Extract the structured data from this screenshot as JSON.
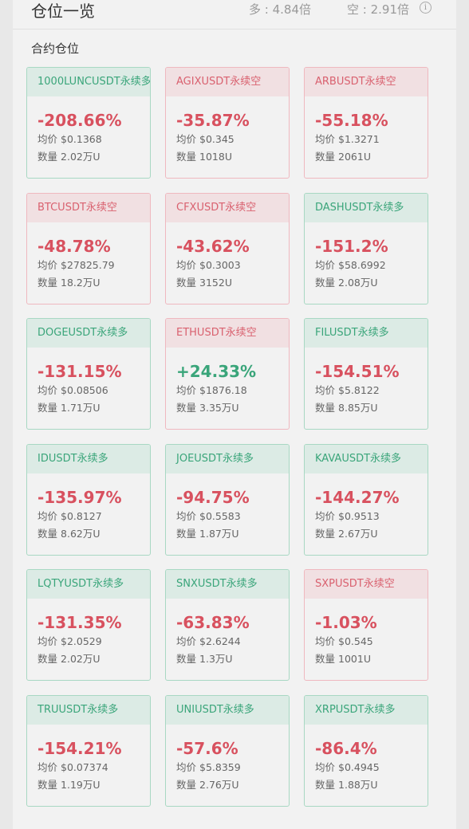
{
  "header": {
    "title": "仓位一览",
    "long_ratio": "多 : 4.84倍",
    "short_ratio": "空 : 2.91倍",
    "info_icon": "info-icon"
  },
  "section_title": "合约仓位",
  "labels": {
    "avg_price": "均价",
    "quantity": "数量"
  },
  "positions": [
    {
      "name": "1000LUNCUSDT永续多",
      "side": "long",
      "pct": "-208.66%",
      "sign": "neg",
      "avg": "$0.1368",
      "qty": "2.02万U"
    },
    {
      "name": "AGIXUSDT永续空",
      "side": "short",
      "pct": "-35.87%",
      "sign": "neg",
      "avg": "$0.345",
      "qty": "1018U"
    },
    {
      "name": "ARBUSDT永续空",
      "side": "short",
      "pct": "-55.18%",
      "sign": "neg",
      "avg": "$1.3271",
      "qty": "2061U"
    },
    {
      "name": "BTCUSDT永续空",
      "side": "short",
      "pct": "-48.78%",
      "sign": "neg",
      "avg": "$27825.79",
      "qty": "18.2万U"
    },
    {
      "name": "CFXUSDT永续空",
      "side": "short",
      "pct": "-43.62%",
      "sign": "neg",
      "avg": "$0.3003",
      "qty": "3152U"
    },
    {
      "name": "DASHUSDT永续多",
      "side": "long",
      "pct": "-151.2%",
      "sign": "neg",
      "avg": "$58.6992",
      "qty": "2.08万U"
    },
    {
      "name": "DOGEUSDT永续多",
      "side": "long",
      "pct": "-131.15%",
      "sign": "neg",
      "avg": "$0.08506",
      "qty": "1.71万U"
    },
    {
      "name": "ETHUSDT永续空",
      "side": "short",
      "pct": "+24.33%",
      "sign": "pos",
      "avg": "$1876.18",
      "qty": "3.35万U"
    },
    {
      "name": "FILUSDT永续多",
      "side": "long",
      "pct": "-154.51%",
      "sign": "neg",
      "avg": "$5.8122",
      "qty": "8.85万U"
    },
    {
      "name": "IDUSDT永续多",
      "side": "long",
      "pct": "-135.97%",
      "sign": "neg",
      "avg": "$0.8127",
      "qty": "8.62万U"
    },
    {
      "name": "JOEUSDT永续多",
      "side": "long",
      "pct": "-94.75%",
      "sign": "neg",
      "avg": "$0.5583",
      "qty": "1.87万U"
    },
    {
      "name": "KAVAUSDT永续多",
      "side": "long",
      "pct": "-144.27%",
      "sign": "neg",
      "avg": "$0.9513",
      "qty": "2.67万U"
    },
    {
      "name": "LQTYUSDT永续多",
      "side": "long",
      "pct": "-131.35%",
      "sign": "neg",
      "avg": "$2.0529",
      "qty": "2.02万U"
    },
    {
      "name": "SNXUSDT永续多",
      "side": "long",
      "pct": "-63.83%",
      "sign": "neg",
      "avg": "$2.6244",
      "qty": "1.3万U"
    },
    {
      "name": "SXPUSDT永续空",
      "side": "short",
      "pct": "-1.03%",
      "sign": "neg",
      "avg": "$0.545",
      "qty": "1001U"
    },
    {
      "name": "TRUUSDT永续多",
      "side": "long",
      "pct": "-154.21%",
      "sign": "neg",
      "avg": "$0.07374",
      "qty": "1.19万U"
    },
    {
      "name": "UNIUSDT永续多",
      "side": "long",
      "pct": "-57.6%",
      "sign": "neg",
      "avg": "$5.8359",
      "qty": "2.76万U"
    },
    {
      "name": "XRPUSDT永续多",
      "side": "long",
      "pct": "-86.4%",
      "sign": "neg",
      "avg": "$0.4945",
      "qty": "1.88万U"
    }
  ],
  "colors": {
    "long": "#3aa57a",
    "short": "#d9616f",
    "loss": "#d8515f",
    "profit": "#3aa57a"
  }
}
